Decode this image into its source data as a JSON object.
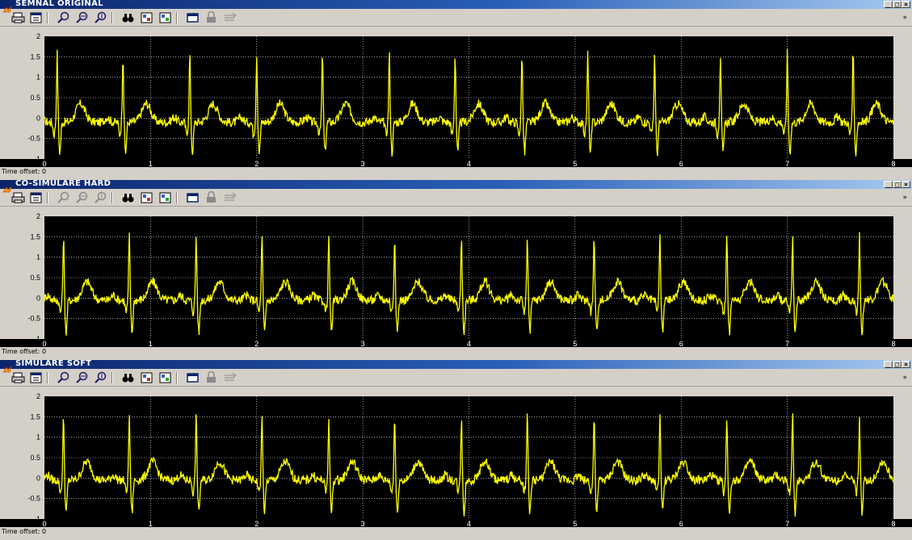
{
  "windows": [
    {
      "id": "original",
      "title": "SEMNAL ORIGINAL",
      "status_label": "Time offset:",
      "status_value": "0",
      "zoom_enabled": true
    },
    {
      "id": "hard",
      "title": "CO-SIMULARE HARD",
      "status_label": "Time offset:",
      "status_value": "0",
      "zoom_enabled": false
    },
    {
      "id": "soft",
      "title": "SIMULARE SOFT",
      "status_label": "Time offset:",
      "status_value": "0",
      "zoom_enabled": true
    }
  ],
  "window_buttons": [
    "_",
    "□",
    "×"
  ],
  "toolbar": [
    {
      "name": "print-icon",
      "glyph": "🖶"
    },
    {
      "name": "parameters-icon",
      "glyph": "▤"
    },
    {
      "name": "zoom-icon",
      "glyph": "⌕"
    },
    {
      "name": "zoom-x-icon",
      "glyph": "⌕"
    },
    {
      "name": "zoom-y-icon",
      "glyph": "⌕"
    },
    {
      "name": "autoscale-icon",
      "glyph": "🔭"
    },
    {
      "name": "save-axes-icon",
      "glyph": "▦"
    },
    {
      "name": "restore-axes-icon",
      "glyph": "▦"
    },
    {
      "name": "floating-scope-icon",
      "glyph": "▭"
    },
    {
      "name": "lock-axes-icon",
      "glyph": "▣"
    },
    {
      "name": "signal-selection-icon",
      "glyph": "⇶"
    }
  ],
  "colors": {
    "plot_bg": "#000000",
    "trace": "#ffff00",
    "grid": "#ffffff",
    "tick_label": "#ffffff",
    "window_bg": "#d4d0c8",
    "title_bar": "#0a246a"
  },
  "chart_data": [
    {
      "type": "line",
      "title": "",
      "xlabel": "",
      "ylabel": "",
      "xlim": [
        0,
        8
      ],
      "ylim": [
        -1,
        2
      ],
      "x_ticks": [
        "0",
        "1",
        "2",
        "3",
        "4",
        "5",
        "6",
        "7",
        "8"
      ],
      "y_ticks": [
        "-1",
        "-0.5",
        "0",
        "0.5",
        "1",
        "1.5",
        "2"
      ],
      "grid": true,
      "series": [
        {
          "beats_t": [
            0.12,
            0.74,
            1.37,
            2.0,
            2.62,
            3.25,
            3.87,
            4.5,
            5.12,
            5.75,
            6.37,
            7.0,
            7.62
          ],
          "r_peak": 1.6,
          "s_trough": -0.75,
          "t_wave": 0.45,
          "baseline": -0.1
        }
      ]
    },
    {
      "type": "line",
      "title": "",
      "xlabel": "",
      "ylabel": "",
      "xlim": [
        0,
        8
      ],
      "ylim": [
        -1,
        2
      ],
      "x_ticks": [
        "0",
        "1",
        "2",
        "3",
        "4",
        "5",
        "6",
        "7",
        "8"
      ],
      "y_ticks": [
        "-1",
        "-0.5",
        "0",
        "0.5",
        "1",
        "1.5",
        "2"
      ],
      "grid": true,
      "series": [
        {
          "beats_t": [
            0.18,
            0.8,
            1.43,
            2.05,
            2.68,
            3.3,
            3.93,
            4.55,
            5.18,
            5.8,
            6.43,
            7.05,
            7.68
          ],
          "r_peak": 1.5,
          "s_trough": -0.8,
          "t_wave": 0.45,
          "baseline": -0.05
        }
      ]
    },
    {
      "type": "line",
      "title": "",
      "xlabel": "",
      "ylabel": "",
      "xlim": [
        0,
        8
      ],
      "ylim": [
        -1,
        2
      ],
      "x_ticks": [
        "0",
        "1",
        "2",
        "3",
        "4",
        "5",
        "6",
        "7",
        "8"
      ],
      "y_ticks": [
        "-1",
        "-0.5",
        "0",
        "0.5",
        "1",
        "1.5",
        "2"
      ],
      "grid": true,
      "series": [
        {
          "beats_t": [
            0.18,
            0.8,
            1.43,
            2.05,
            2.68,
            3.3,
            3.93,
            4.55,
            5.18,
            5.8,
            6.43,
            7.05,
            7.68
          ],
          "r_peak": 1.5,
          "s_trough": -0.8,
          "t_wave": 0.45,
          "baseline": -0.05
        }
      ]
    }
  ]
}
